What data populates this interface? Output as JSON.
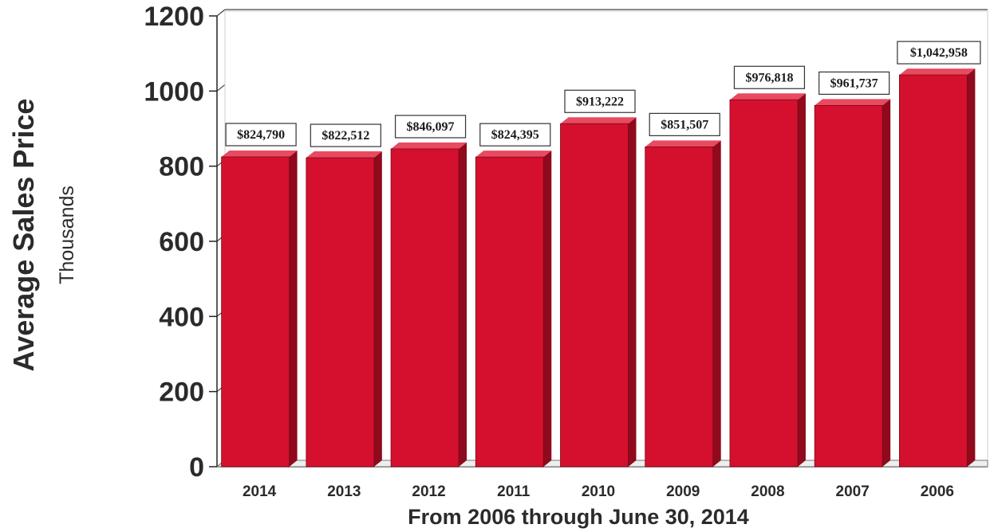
{
  "chart_data": {
    "type": "bar",
    "title": "",
    "xlabel": "From 2006 through June 30, 2014",
    "ylabel": "Average Sales Price",
    "ylabel_sub": "Thousands",
    "categories": [
      "2014",
      "2013",
      "2012",
      "2011",
      "2010",
      "2009",
      "2008",
      "2007",
      "2006"
    ],
    "values": [
      824.79,
      822.512,
      846.097,
      824.395,
      913.222,
      851.507,
      976.818,
      961.737,
      1042.958
    ],
    "data_labels": [
      "$824,790",
      "$822,512",
      "$846,097",
      "$824,395",
      "$913,222",
      "$851,507",
      "$976,818",
      "$961,737",
      "$1,042,958"
    ],
    "ylim": [
      0,
      1200
    ],
    "yticks": [
      0,
      200,
      400,
      600,
      800,
      1000,
      1200
    ],
    "grid": true,
    "legend": "none",
    "bar_color": "#d4102e",
    "bar_side_color": "#8e0a1c",
    "bar_top_color": "#e84a60"
  }
}
